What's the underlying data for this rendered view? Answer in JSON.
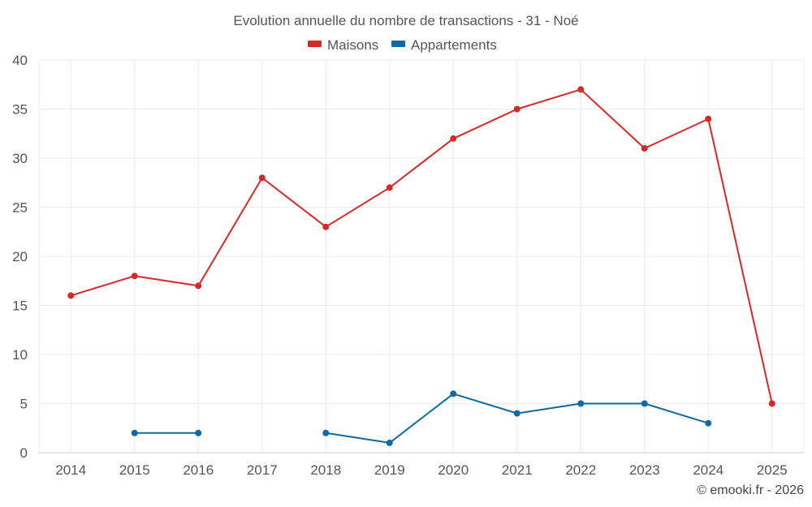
{
  "chart_data": {
    "type": "line",
    "title": "Evolution annuelle du nombre de transactions - 31 - Noé",
    "categories": [
      "2014",
      "2015",
      "2016",
      "2017",
      "2018",
      "2019",
      "2020",
      "2021",
      "2022",
      "2023",
      "2024",
      "2025"
    ],
    "yticks": [
      0,
      5,
      10,
      15,
      20,
      25,
      30,
      35,
      40
    ],
    "ylim": [
      0,
      40
    ],
    "xlabel": "",
    "ylabel": "",
    "grid": true,
    "legend_position": "top-center",
    "series": [
      {
        "name": "Maisons",
        "color": "#d42a2a",
        "values": [
          16,
          18,
          17,
          28,
          23,
          27,
          32,
          35,
          37,
          31,
          34,
          5
        ]
      },
      {
        "name": "Appartements",
        "color": "#0e6aa3",
        "values": [
          null,
          2,
          2,
          null,
          2,
          1,
          6,
          4,
          5,
          5,
          3,
          null
        ]
      }
    ],
    "credit": "© emooki.fr - 2026"
  }
}
